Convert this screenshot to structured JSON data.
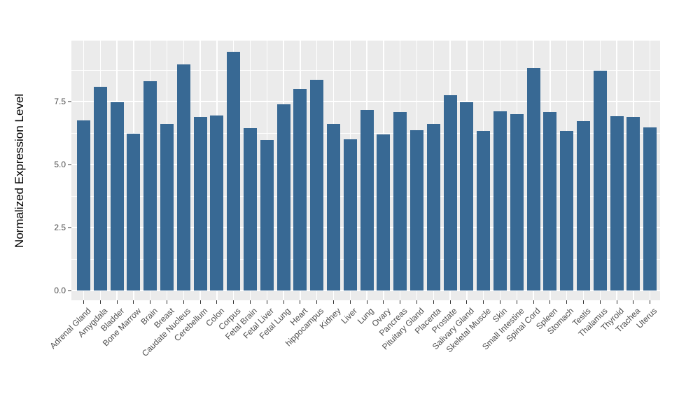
{
  "chart_data": {
    "type": "bar",
    "title": "",
    "xlabel": "",
    "ylabel": "Normalized Expression Level",
    "ylim": [
      0,
      9.9
    ],
    "yticks": [
      0.0,
      2.5,
      5.0,
      7.5
    ],
    "ytick_labels": [
      "0.0",
      "2.5",
      "5.0",
      "7.5"
    ],
    "yminor_ticks": [
      1.25,
      3.75,
      6.25,
      8.75
    ],
    "grid": "white major+minor horizontal lines and vertical category lines on gray panel",
    "legend_position": "none",
    "bar_color": "#386994",
    "panel_background": "#EBEBEB",
    "gridline_color": "#FFFFFF",
    "axis_text_color": "#4D4D4D",
    "categories": [
      "Adrenal Gland",
      "Amygdala",
      "Bladder",
      "Bone Marrow",
      "Brain",
      "Breast",
      "Caudate Nucleus",
      "Cerebellum",
      "Colon",
      "Corpus",
      "Fetal Brain",
      "Fetal Liver",
      "Fetal Lung",
      "Heart",
      "hippocampus",
      "Kidney",
      "Liver",
      "Lung",
      "Ovary",
      "Pancreas",
      "Pituitary Gland",
      "Placenta",
      "Prostate",
      "Salivary Gland",
      "Skeletal Muscle",
      "Skin",
      "Small Intestine",
      "Spinal Cord",
      "Spleen",
      "Stomach",
      "Testis",
      "Thalamus",
      "Thyroid",
      "Trachea",
      "Uterus"
    ],
    "values": [
      6.74,
      8.08,
      7.47,
      6.21,
      8.31,
      6.6,
      8.98,
      6.88,
      6.94,
      9.47,
      6.45,
      5.97,
      7.39,
      8.0,
      8.37,
      6.62,
      6.0,
      7.17,
      6.19,
      7.09,
      6.36,
      6.62,
      7.75,
      7.47,
      6.33,
      7.12,
      6.99,
      8.83,
      7.09,
      6.32,
      6.71,
      8.72,
      6.92,
      6.89,
      6.46
    ]
  }
}
